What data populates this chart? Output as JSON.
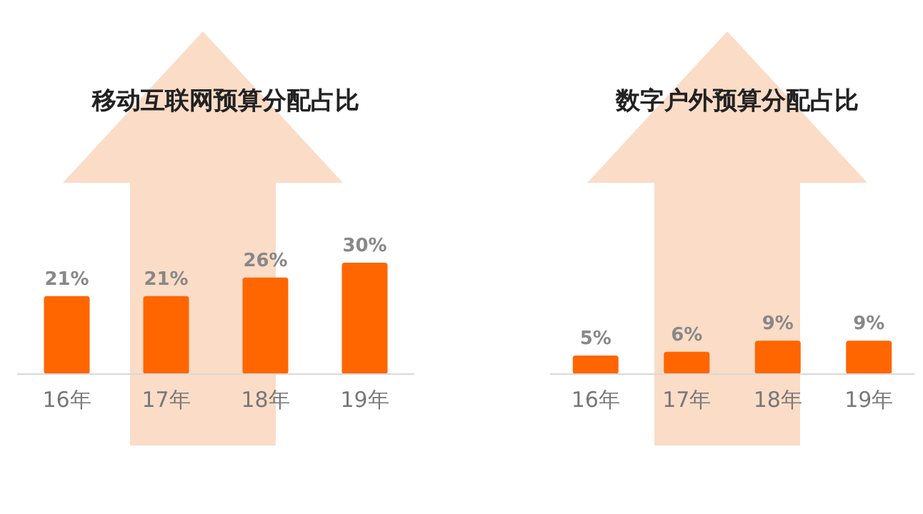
{
  "chart_data": [
    {
      "type": "bar",
      "title": "移动互联网预算分配占比",
      "categories": [
        "16年",
        "17年",
        "18年",
        "19年"
      ],
      "values": [
        21,
        21,
        26,
        30
      ],
      "value_labels": [
        "21%",
        "21%",
        "26%",
        "30%"
      ],
      "color": "#ff6600"
    },
    {
      "type": "bar",
      "title": "数字户外预算分配占比",
      "categories": [
        "16年",
        "17年",
        "18年",
        "19年"
      ],
      "values": [
        5,
        6,
        9,
        9
      ],
      "value_labels": [
        "5%",
        "6%",
        "9%",
        "9%"
      ],
      "color": "#ff6600"
    }
  ]
}
